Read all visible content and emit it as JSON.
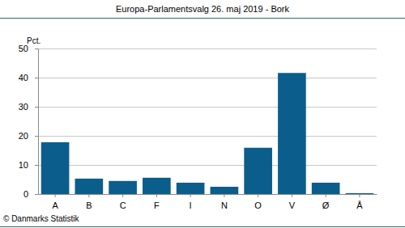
{
  "chart_data": {
    "type": "bar",
    "title": "Europa-Parlamentsvalg 26. maj 2019 - Bork",
    "ylabel": "Pct.",
    "source": "© Danmarks Statistik",
    "categories": [
      "A",
      "B",
      "C",
      "F",
      "I",
      "N",
      "O",
      "V",
      "Ø",
      "Å"
    ],
    "values": [
      17.8,
      5.3,
      4.5,
      5.6,
      3.9,
      2.5,
      15.9,
      41.6,
      3.9,
      0.3
    ],
    "color": "#0b5e8c",
    "ylim": [
      0,
      50
    ],
    "yticks": [
      0,
      10,
      20,
      30,
      40,
      50
    ],
    "grid": true
  }
}
